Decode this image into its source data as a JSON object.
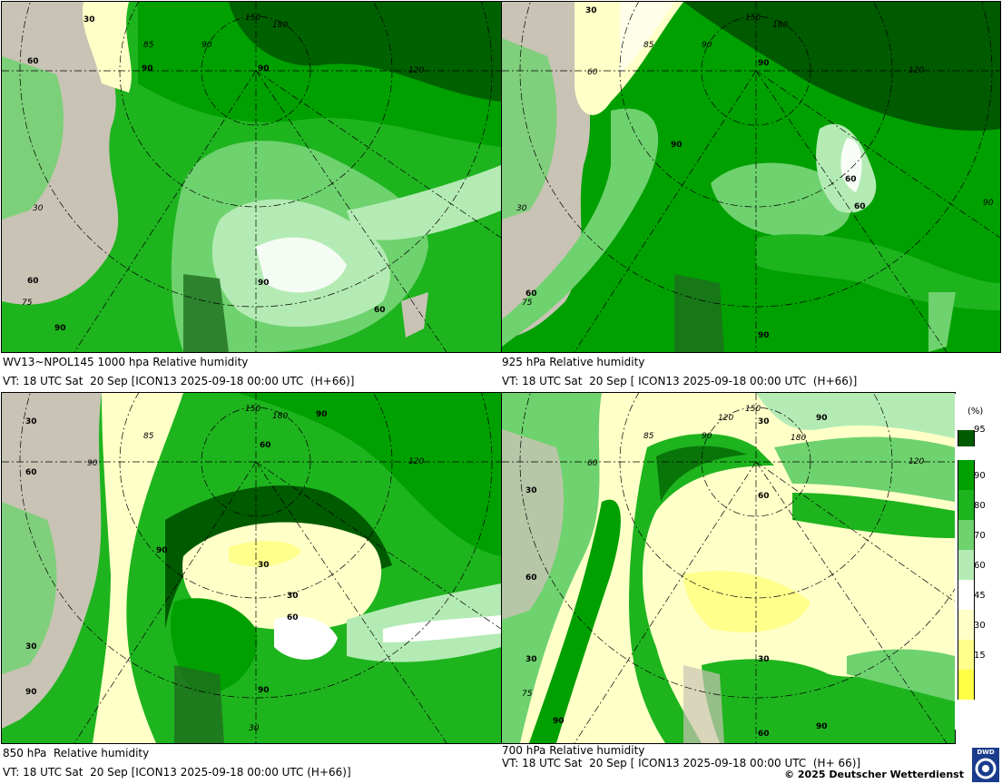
{
  "panels": [
    {
      "id": "p1000",
      "caption_line1": "WV13~NPOL145 1000 hpa Relative humidity",
      "caption_line2": "VT: 18 UTC Sat  20 Sep [ICON13 2025-09-18 00:00 UTC  (H+66)]",
      "contour_labels": [
        "30",
        "60",
        "90",
        "90",
        "90",
        "60",
        "60",
        "90",
        "60",
        "90",
        "60"
      ],
      "grid_labels": [
        "85",
        "90",
        "150",
        "180",
        "120",
        "30",
        "75",
        "90",
        "60"
      ]
    },
    {
      "id": "p925",
      "caption_line1": "925 hPa Relative humidity",
      "caption_line2": "VT: 18 UTC Sat  20 Sep [ ICON13 2025-09-18 00:00 UTC  (H+66)]",
      "contour_labels": [
        "30",
        "90",
        "90",
        "60",
        "60",
        "60",
        "90"
      ],
      "grid_labels": [
        "85",
        "90",
        "150",
        "180",
        "120",
        "60",
        "30",
        "75",
        "90"
      ]
    },
    {
      "id": "p850",
      "caption_line1": "850 hPa  Relative humidity",
      "caption_line2": "VT: 18 UTC Sat  20 Sep [ICON13 2025-09-18 00:00 UTC (H+66)]",
      "contour_labels": [
        "30",
        "60",
        "90",
        "60",
        "90",
        "30",
        "30",
        "60",
        "30",
        "90",
        "90"
      ],
      "grid_labels": [
        "85",
        "150",
        "180",
        "120",
        "90",
        "30",
        "60",
        "30"
      ]
    },
    {
      "id": "p700",
      "caption_line1": "700 hPa Relative humidity",
      "caption_line2": "VT: 18 UTC Sat  20 Sep [ ICON13 2025-09-18 00:00 UTC  (H+ 66)]",
      "contour_labels": [
        "30",
        "90",
        "60",
        "30",
        "60",
        "30",
        "30",
        "90",
        "90",
        "60"
      ],
      "grid_labels": [
        "85",
        "120",
        "150",
        "180",
        "90",
        "120",
        "60",
        "75",
        "30"
      ]
    }
  ],
  "legend": {
    "unit": "(%)",
    "classes": [
      {
        "color": "#005a00",
        "from": 95
      },
      {
        "color": "#00a000",
        "from": 90
      },
      {
        "color": "#1eb41e",
        "from": 80
      },
      {
        "color": "#6ed26e",
        "from": 70
      },
      {
        "color": "#b4ebb4",
        "from": 60
      },
      {
        "color": "#ffffff",
        "from": 45
      },
      {
        "color": "#ffffc8",
        "from": 30
      },
      {
        "color": "#ffff8c",
        "from": 15
      },
      {
        "color": "#ffff46",
        "from": 0
      }
    ],
    "ticks": [
      "95",
      "90",
      "80",
      "70",
      "60",
      "45",
      "30",
      "15"
    ]
  },
  "copyright": "© 2025 Deutscher Wetterdienst",
  "logo_text": "DWD",
  "colors": {
    "land": "#c8c3b4",
    "land_dark": "#a8a290",
    "rh95": "#005a00",
    "rh90": "#00a000",
    "rh80": "#1eb41e",
    "rh70": "#6ed26e",
    "rh60": "#b4ebb4",
    "rh45": "#ffffff",
    "rh30": "#ffffc8",
    "rh15": "#ffff8c"
  }
}
